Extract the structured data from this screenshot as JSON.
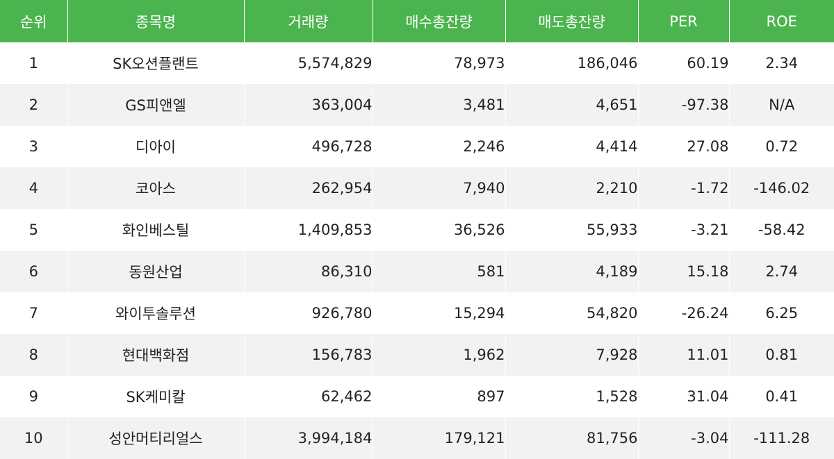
{
  "table": {
    "headers": [
      "순위",
      "종목명",
      "거래량",
      "매수총잔량",
      "매도총잔량",
      "PER",
      "ROE"
    ],
    "rows": [
      [
        "1",
        "SK오션플랜트",
        "5,574,829",
        "78,973",
        "186,046",
        "60.19",
        "2.34"
      ],
      [
        "2",
        "GS피앤엘",
        "363,004",
        "3,481",
        "4,651",
        "-97.38",
        "N/A"
      ],
      [
        "3",
        "디아이",
        "496,728",
        "2,246",
        "4,414",
        "27.08",
        "0.72"
      ],
      [
        "4",
        "코아스",
        "262,954",
        "7,940",
        "2,210",
        "-1.72",
        "-146.02"
      ],
      [
        "5",
        "화인베스틸",
        "1,409,853",
        "36,526",
        "55,933",
        "-3.21",
        "-58.42"
      ],
      [
        "6",
        "동원산업",
        "86,310",
        "581",
        "4,189",
        "15.18",
        "2.74"
      ],
      [
        "7",
        "와이투솔루션",
        "926,780",
        "15,294",
        "54,820",
        "-26.24",
        "6.25"
      ],
      [
        "8",
        "현대백화점",
        "156,783",
        "1,962",
        "7,928",
        "11.01",
        "0.81"
      ],
      [
        "9",
        "SK케미칼",
        "62,462",
        "897",
        "1,528",
        "31.04",
        "0.41"
      ],
      [
        "10",
        "성안머티리얼스",
        "3,994,184",
        "179,121",
        "81,756",
        "-3.04",
        "-111.28"
      ]
    ]
  },
  "colors": {
    "header_bg": "#4cb44e",
    "header_text": "#ffffff",
    "row_alt_bg": "#f2f2f2"
  }
}
